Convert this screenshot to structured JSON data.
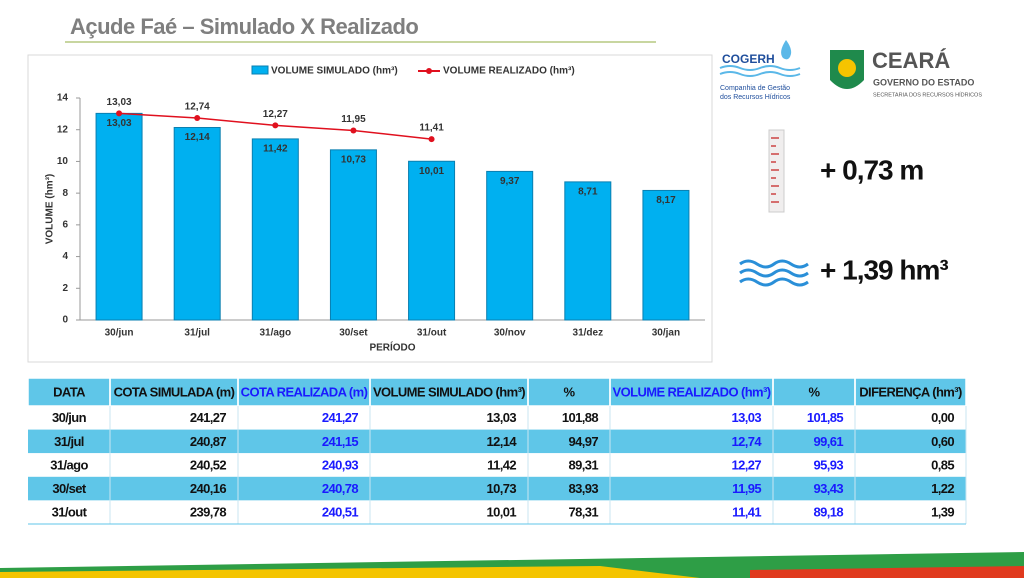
{
  "title": "Açude Faé – Simulado X Realizado",
  "chart_data": {
    "type": "bar",
    "xlabel": "PERÍODO",
    "ylabel": "VOLUME (hm³)",
    "categories": [
      "30/jun",
      "31/jul",
      "31/ago",
      "30/set",
      "31/out",
      "30/nov",
      "31/dez",
      "30/jan"
    ],
    "series": [
      {
        "name": "VOLUME SIMULADO (hm³)",
        "type": "bar",
        "color": "#00b0f0",
        "values": [
          13.03,
          12.14,
          11.42,
          10.73,
          10.01,
          9.37,
          8.71,
          8.17
        ],
        "value_labels": [
          "13,03",
          "12,14",
          "11,42",
          "10,73",
          "10,01",
          "9,37",
          "8,71",
          "8,17"
        ]
      },
      {
        "name": "VOLUME REALIZADO (hm³)",
        "type": "line",
        "color": "#e0101e",
        "values": [
          13.03,
          12.74,
          12.27,
          11.95,
          11.41,
          null,
          null,
          null
        ],
        "value_labels": [
          "13,03",
          "12,74",
          "12,27",
          "11,95",
          "11,41",
          null,
          null,
          null
        ]
      }
    ],
    "ylim": [
      0,
      14
    ],
    "yticks": [
      0,
      2,
      4,
      6,
      8,
      10,
      12,
      14
    ],
    "legend": "top"
  },
  "logos": {
    "cogerh": "COGERH",
    "cogerh_line1": "Companhia de Gestão",
    "cogerh_line2": "dos Recursos Hídricos",
    "ceara": "CEARÁ",
    "governo": "GOVERNO DO ESTADO",
    "secretaria": "SECRETARIA DOS RECURSOS HÍDRICOS"
  },
  "indicators": {
    "level": "+ 0,73 m",
    "volume": "+ 1,39 hm³"
  },
  "table": {
    "header": [
      "DATA",
      "COTA SIMULADA (m)",
      "COTA REALIZADA (m)",
      "VOLUME SIMULADO (hm³)",
      "%",
      "VOLUME REALIZADO (hm³)",
      "%",
      "DIFERENÇA (hm³)"
    ],
    "rows": [
      [
        "30/jun",
        "241,27",
        "241,27",
        "13,03",
        "101,88",
        "13,03",
        "101,85",
        "0,00"
      ],
      [
        "31/jul",
        "240,87",
        "241,15",
        "12,14",
        "94,97",
        "12,74",
        "99,61",
        "0,60"
      ],
      [
        "31/ago",
        "240,52",
        "240,93",
        "11,42",
        "89,31",
        "12,27",
        "95,93",
        "0,85"
      ],
      [
        "30/set",
        "240,16",
        "240,78",
        "10,73",
        "83,93",
        "11,95",
        "93,43",
        "1,22"
      ],
      [
        "31/out",
        "239,78",
        "240,51",
        "10,01",
        "78,31",
        "11,41",
        "89,18",
        "1,39"
      ]
    ]
  }
}
